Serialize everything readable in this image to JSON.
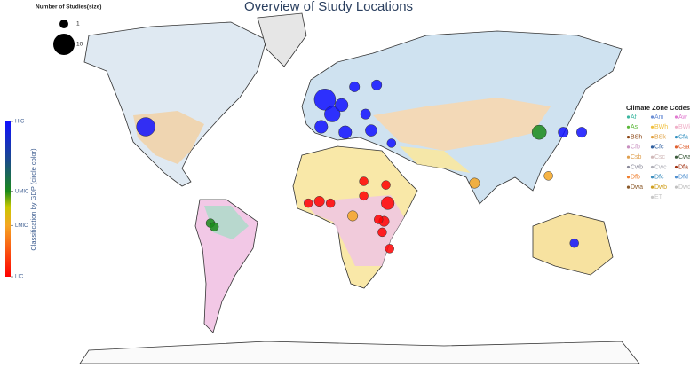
{
  "title": "Overview of Study Locations",
  "size_legend": {
    "title": "Number of Studies(size)",
    "sizes": [
      1,
      10
    ]
  },
  "gdp_colorbar": {
    "title": "Classification by GDP (circle color)",
    "ticks": [
      {
        "value": 1,
        "label": "HIC"
      },
      {
        "value": 0.55,
        "label": "UMIC"
      },
      {
        "value": 0.33,
        "label": "LMIC"
      },
      {
        "value": 0,
        "label": "LIC"
      }
    ],
    "colorscale": [
      [
        0,
        "#ff0000"
      ],
      [
        0.33,
        "#f5a623"
      ],
      [
        0.45,
        "#c8c800"
      ],
      [
        0.55,
        "#1a8a1a"
      ],
      [
        0.75,
        "#1a4a8a"
      ],
      [
        1,
        "#1010ff"
      ]
    ]
  },
  "climate_legend": {
    "title": "Climate Zone Codes",
    "items": [
      {
        "code": "Af",
        "color": "#3cb7a0"
      },
      {
        "code": "Am",
        "color": "#6b8fd6"
      },
      {
        "code": "Aw",
        "color": "#e07ad0"
      },
      {
        "code": "As",
        "color": "#5cb83a"
      },
      {
        "code": "BWh",
        "color": "#f0c040"
      },
      {
        "code": "BWk",
        "color": "#f0b0c8"
      },
      {
        "code": "BSh",
        "color": "#8b4513"
      },
      {
        "code": "BSk",
        "color": "#e0a040"
      },
      {
        "code": "Cfa",
        "color": "#2f8fbf"
      },
      {
        "code": "Cfb",
        "color": "#c890c0"
      },
      {
        "code": "Cfc",
        "color": "#3060a0"
      },
      {
        "code": "Csa",
        "color": "#e06030"
      },
      {
        "code": "Csb",
        "color": "#e0a050"
      },
      {
        "code": "Csc",
        "color": "#d0b8b8"
      },
      {
        "code": "Cwa",
        "color": "#3a5a3a"
      },
      {
        "code": "Cwb",
        "color": "#8a8a9a"
      },
      {
        "code": "Cwc",
        "color": "#b0b0b8"
      },
      {
        "code": "Dfa",
        "color": "#a03010"
      },
      {
        "code": "Dfb",
        "color": "#f08030"
      },
      {
        "code": "Dfc",
        "color": "#4090c0"
      },
      {
        "code": "Dfd",
        "color": "#5090d0"
      },
      {
        "code": "Dwa",
        "color": "#8b5a2b"
      },
      {
        "code": "Dwb",
        "color": "#d0a020"
      },
      {
        "code": "Dwd",
        "color": "#c0c0c0"
      },
      {
        "code": "ET",
        "color": "#c8c8c8"
      }
    ]
  },
  "points": [
    {
      "lon": -98,
      "lat": 40,
      "size": 8,
      "gdp": 1
    },
    {
      "lon": -1,
      "lat": 55,
      "size": 10,
      "gdp": 1
    },
    {
      "lon": 3,
      "lat": 47,
      "size": 6,
      "gdp": 1
    },
    {
      "lon": 8,
      "lat": 52,
      "size": 4,
      "gdp": 1
    },
    {
      "lon": -3,
      "lat": 40,
      "size": 4,
      "gdp": 1
    },
    {
      "lon": 15,
      "lat": 62,
      "size": 2,
      "gdp": 1
    },
    {
      "lon": 27,
      "lat": 63,
      "size": 2,
      "gdp": 1
    },
    {
      "lon": 21,
      "lat": 47,
      "size": 2,
      "gdp": 1
    },
    {
      "lon": 10,
      "lat": 37,
      "size": 4,
      "gdp": 1
    },
    {
      "lon": 24,
      "lat": 38,
      "size": 3,
      "gdp": 1
    },
    {
      "lon": 35,
      "lat": 31,
      "size": 1,
      "gdp": 1
    },
    {
      "lon": 115,
      "lat": 37,
      "size": 5,
      "gdp": 0.55
    },
    {
      "lon": 128,
      "lat": 37,
      "size": 2,
      "gdp": 1
    },
    {
      "lon": 138,
      "lat": 37,
      "size": 2,
      "gdp": 1
    },
    {
      "lon": 120,
      "lat": 13,
      "size": 1,
      "gdp": 0.33
    },
    {
      "lon": 80,
      "lat": 9,
      "size": 2,
      "gdp": 0.33
    },
    {
      "lon": 134,
      "lat": -24,
      "size": 1,
      "gdp": 1
    },
    {
      "lon": -10,
      "lat": -2,
      "size": 1,
      "gdp": 0
    },
    {
      "lon": -4,
      "lat": -1,
      "size": 2,
      "gdp": 0
    },
    {
      "lon": 2,
      "lat": -2,
      "size": 1,
      "gdp": 0
    },
    {
      "lon": 14,
      "lat": -9,
      "size": 2,
      "gdp": 0.33
    },
    {
      "lon": 20,
      "lat": 2,
      "size": 1,
      "gdp": 0
    },
    {
      "lon": 33,
      "lat": -2,
      "size": 4,
      "gdp": 0
    },
    {
      "lon": 31,
      "lat": -12,
      "size": 2,
      "gdp": 0
    },
    {
      "lon": 28,
      "lat": -11,
      "size": 1,
      "gdp": 0
    },
    {
      "lon": 30,
      "lat": -18,
      "size": 1,
      "gdp": 0
    },
    {
      "lon": 34,
      "lat": -27,
      "size": 1,
      "gdp": 0
    },
    {
      "lon": 20,
      "lat": 10,
      "size": 1,
      "gdp": 0
    },
    {
      "lon": 32,
      "lat": 8,
      "size": 1,
      "gdp": 0
    },
    {
      "lon": -63,
      "lat": -13,
      "size": 1,
      "gdp": 0.55
    },
    {
      "lon": -61,
      "lat": -15,
      "size": 1,
      "gdp": 0.55
    }
  ]
}
